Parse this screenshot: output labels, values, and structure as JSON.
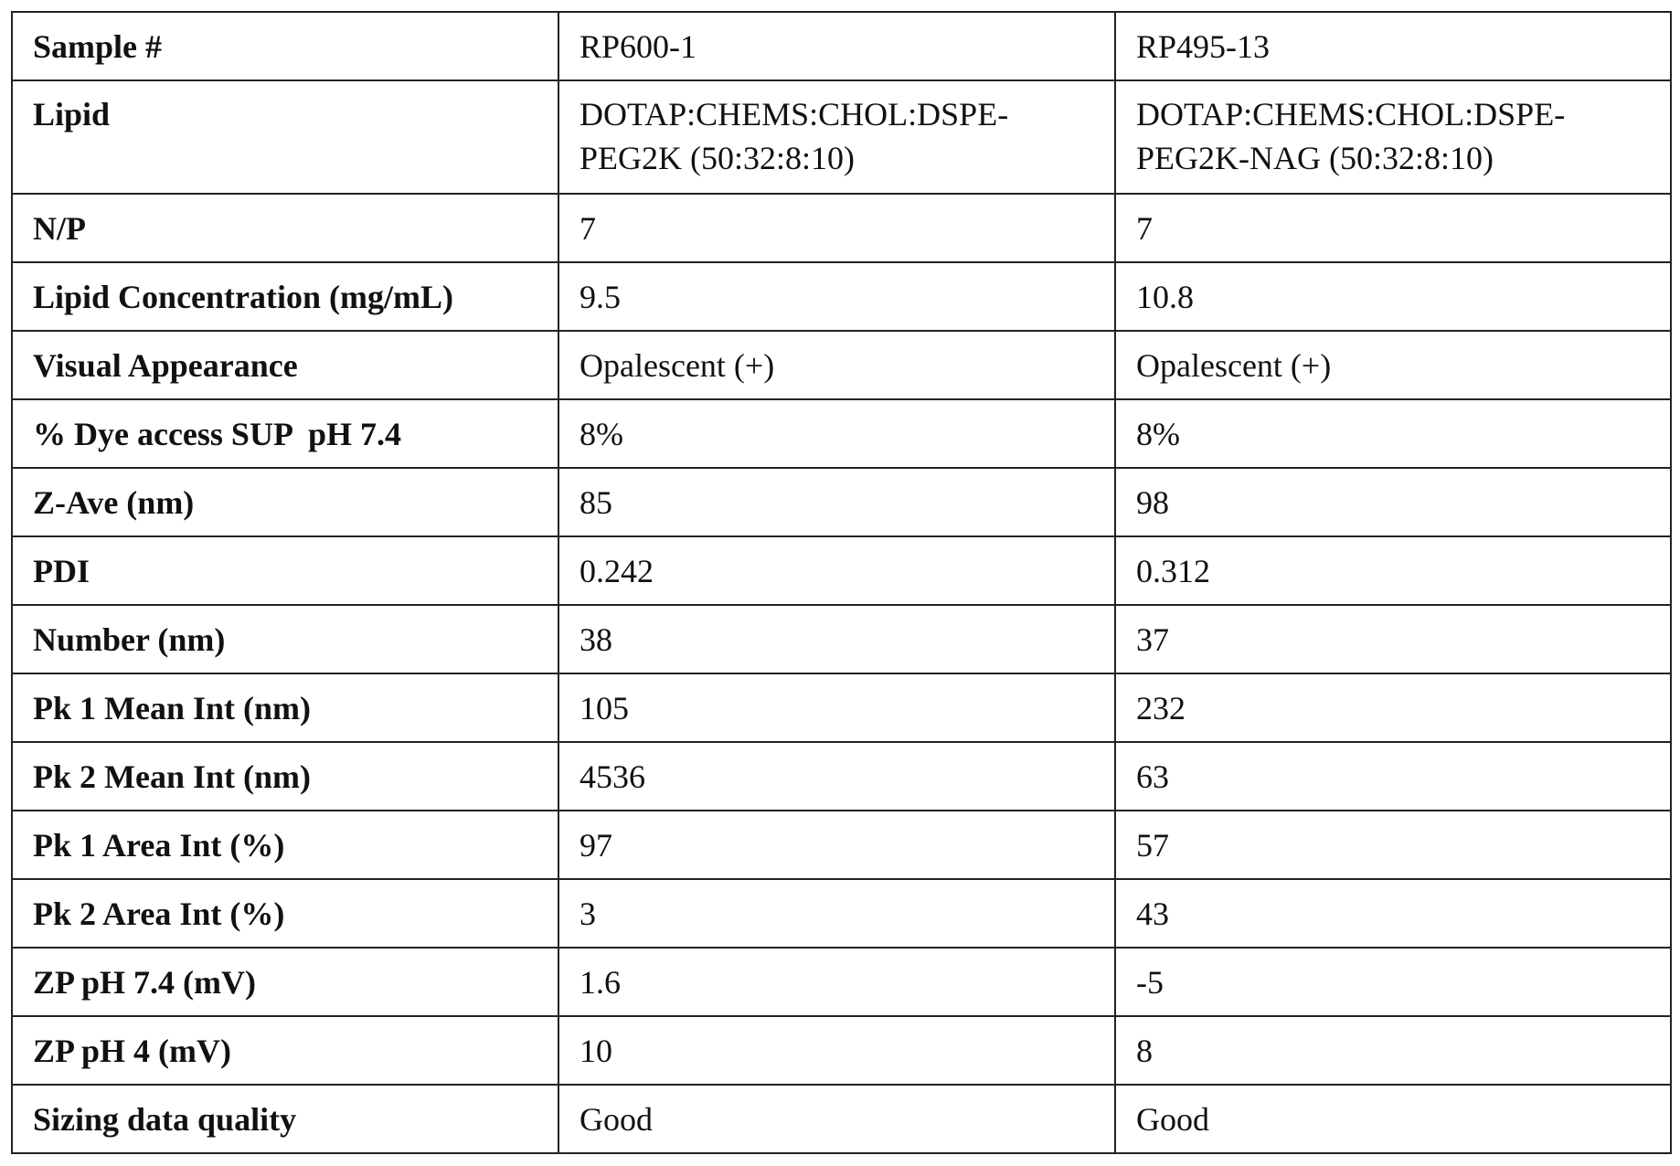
{
  "table": {
    "rows": [
      [
        "Sample #",
        "RP600-1",
        "RP495-13"
      ],
      [
        "Lipid",
        [
          "DOTAP:CHEMS:CHOL:DSPE-",
          "PEG2K (50:32:8:10)"
        ],
        [
          "DOTAP:CHEMS:CHOL:DSPE-",
          "PEG2K-NAG (50:32:8:10)"
        ]
      ],
      [
        "N/P",
        "7",
        "7"
      ],
      [
        "Lipid Concentration (mg/mL)",
        "9.5",
        "10.8"
      ],
      [
        "Visual Appearance",
        "Opalescent (+)",
        "Opalescent (+)"
      ],
      [
        "% Dye access SUP  pH 7.4",
        "8%",
        "8%"
      ],
      [
        "Z-Ave (nm)",
        "85",
        "98"
      ],
      [
        "PDI",
        "0.242",
        "0.312"
      ],
      [
        "Number (nm)",
        "38",
        "37"
      ],
      [
        "Pk 1 Mean Int (nm)",
        "105",
        "232"
      ],
      [
        "Pk 2 Mean Int (nm)",
        "4536",
        "63"
      ],
      [
        "Pk 1 Area Int (%)",
        "97",
        "57"
      ],
      [
        "Pk 2 Area Int (%)",
        "3",
        "43"
      ],
      [
        "ZP pH 7.4 (mV)",
        "1.6",
        "-5"
      ],
      [
        "ZP pH 4 (mV)",
        "10",
        "8"
      ],
      [
        "Sizing data quality",
        "Good",
        "Good"
      ]
    ]
  }
}
